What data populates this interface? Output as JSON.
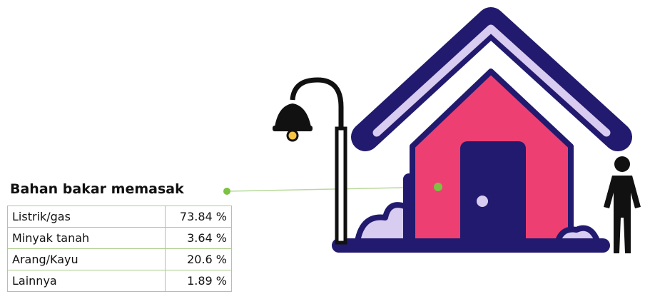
{
  "title": "Bahan bakar memasak",
  "table": {
    "rows": [
      [
        "Listrik/gas",
        "73.84 %"
      ],
      [
        "Minyak tanah",
        "3.64 %"
      ],
      [
        "Arang/Kayu",
        "20.6 %"
      ],
      [
        "Lainnya",
        "1.89 %"
      ]
    ]
  }
}
